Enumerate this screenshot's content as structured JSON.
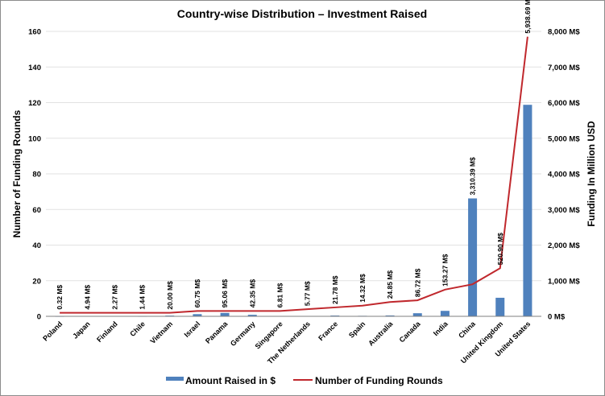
{
  "chart_data": {
    "type": "bar",
    "title": "Country-wise Distribution – Investment Raised",
    "ylabel_left": "Number of Funding Rounds",
    "ylabel_right": "Funding In Million USD",
    "ylim_left": [
      0,
      160
    ],
    "yticks_left": [
      "0",
      "20",
      "40",
      "60",
      "80",
      "100",
      "120",
      "140",
      "160"
    ],
    "ylim_right": [
      0,
      8000
    ],
    "yticks_right": [
      "0 M$",
      "1,000 M$",
      "2,000 M$",
      "3,000 M$",
      "4,000 M$",
      "5,000 M$",
      "6,000 M$",
      "7,000 M$",
      "8,000 M$"
    ],
    "grid": true,
    "legend_position": "bottom",
    "colors": {
      "bars": "#4f81bd",
      "line": "#c0282d",
      "grid": "#e2e2e2"
    },
    "categories": [
      "Poland",
      "Japan",
      "Finland",
      "Chile",
      "Vietnam",
      "Israel",
      "Panama",
      "Germany",
      "Singapore",
      "The Netherlands",
      "France",
      "Spain",
      "Australia",
      "Canada",
      "India",
      "China",
      "United Kingdom",
      "United States"
    ],
    "series": [
      {
        "name": "Amount Raised in $",
        "type": "bar",
        "axis": "right",
        "values": [
          0.32,
          4.94,
          2.27,
          1.44,
          20.0,
          60.75,
          95.06,
          42.35,
          6.81,
          5.77,
          21.78,
          14.32,
          24.85,
          86.72,
          153.27,
          3310.39,
          520.9,
          5938.69
        ],
        "labels": [
          "0.32 M$",
          "4.94 M$",
          "2.27 M$",
          "1.44 M$",
          "20.00 M$",
          "60.75 M$",
          "95.06 M$",
          "42.35 M$",
          "6.81 M$",
          "5.77 M$",
          "21.78 M$",
          "14.32 M$",
          "24.85 M$",
          "86.72 M$",
          "153.27 M$",
          "3,310.39 M$",
          "520.90 M$",
          "5,938.69 M$"
        ]
      },
      {
        "name": "Number of Funding Rounds",
        "type": "line",
        "axis": "left",
        "values": [
          2,
          2,
          2,
          2,
          2,
          3,
          3,
          3,
          3,
          4,
          5,
          6,
          8,
          9,
          15,
          18,
          27,
          157
        ]
      }
    ]
  }
}
